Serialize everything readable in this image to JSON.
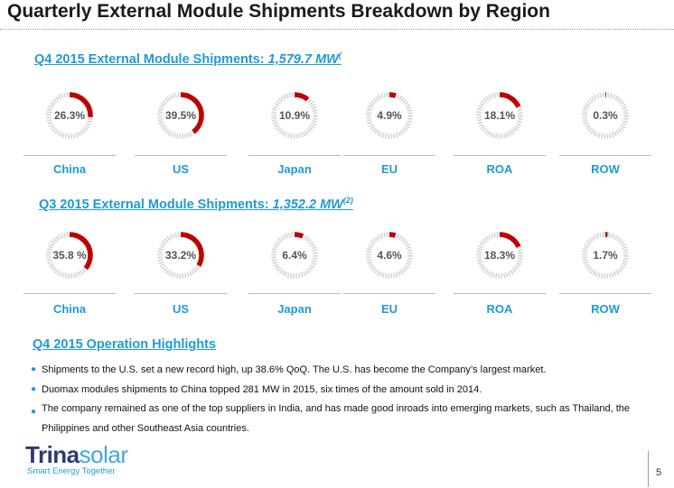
{
  "title": "Quarterly External Module Shipments Breakdown by Region",
  "q4": {
    "label": "Q4 2015 External Module Shipments: ",
    "value": "1,579.7 MW",
    "note": "(",
    "regions": [
      {
        "name": "China",
        "pct_label": "26.3%",
        "pct": 26.3
      },
      {
        "name": "US",
        "pct_label": "39.5%",
        "pct": 39.5
      },
      {
        "name": "Japan",
        "pct_label": "10.9%",
        "pct": 10.9
      },
      {
        "name": "EU",
        "pct_label": "4.9%",
        "pct": 4.9
      },
      {
        "name": "ROA",
        "pct_label": "18.1%",
        "pct": 18.1
      },
      {
        "name": "ROW",
        "pct_label": "0.3%",
        "pct": 0.3
      }
    ]
  },
  "q3": {
    "label": "Q3 2015 External Module Shipments: ",
    "value": "1,352.2 MW",
    "note": "(2)",
    "regions": [
      {
        "name": "China",
        "pct_label": "35.8 %",
        "pct": 35.8
      },
      {
        "name": "US",
        "pct_label": "33.2%",
        "pct": 33.2
      },
      {
        "name": "Japan",
        "pct_label": "6.4%",
        "pct": 6.4
      },
      {
        "name": "EU",
        "pct_label": "4.6%",
        "pct": 4.6
      },
      {
        "name": "ROA",
        "pct_label": "18.3%",
        "pct": 18.3
      },
      {
        "name": "ROW",
        "pct_label": "1.7%",
        "pct": 1.7
      }
    ]
  },
  "highlights": {
    "title": "Q4 2015 Operation Highlights",
    "bullet_icon": "bullet-dot-icon",
    "items": [
      "Shipments to the U.S. set a new record high, up 38.6% QoQ.  The U.S. has become the Company’s  largest market.",
      "Duomax modules shipments to China topped 281 MW in 2015, six times of the amount sold in 2014.",
      "The company remained  as one of the top suppliers in India, and has made good inroads into emerging markets, such as Thailand,  the Philippines and other Southeast Asia countries."
    ]
  },
  "logo": {
    "word_a": "Trina",
    "word_b": "solar",
    "tagline": "Smart Energy Together"
  },
  "page_number": "5",
  "colors": {
    "accent": "#1f9ad6",
    "arc": "#c00000",
    "ring": "#d4d4d4",
    "title": "#1a1a1a"
  }
}
